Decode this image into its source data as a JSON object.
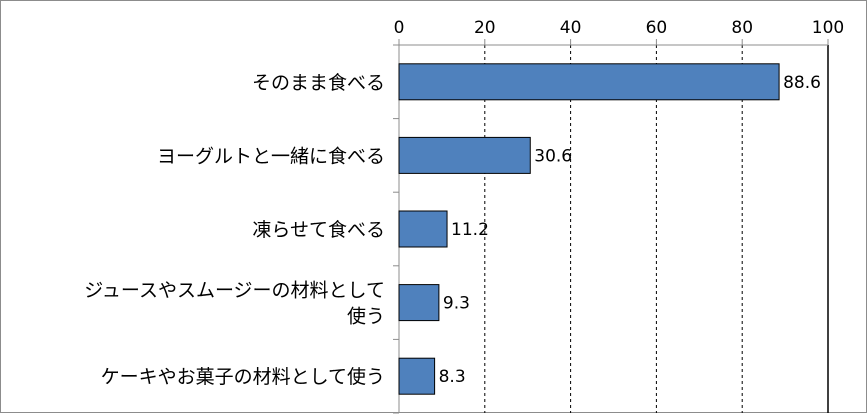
{
  "chart_data": {
    "type": "bar",
    "orientation": "horizontal",
    "categories": [
      "そのまま食べる",
      "ヨーグルトと一緒に食べる",
      "凍らせて食べる",
      "ジュースやスムージーの材料として使う",
      "ケーキやお菓子の材料として使う"
    ],
    "category_lines": [
      [
        "そのまま食べる"
      ],
      [
        "ヨーグルトと一緒に食べる"
      ],
      [
        "凍らせて食べる"
      ],
      [
        "ジュースやスムージーの材料として",
        "使う"
      ],
      [
        "ケーキやお菓子の材料として使う"
      ]
    ],
    "values": [
      88.6,
      30.6,
      11.2,
      9.3,
      8.3
    ],
    "data_labels": [
      "88.6",
      "30.6",
      "11.2",
      "9.3",
      "8.3"
    ],
    "xlim": [
      0,
      100
    ],
    "xticks": [
      0,
      20,
      40,
      60,
      80,
      100
    ],
    "x_axis_position": "top",
    "grid": "vertical dashed",
    "title": "",
    "xlabel": "",
    "ylabel": "",
    "colors": {
      "bar": "#4f81bd",
      "bar_border": "#000000",
      "grid": "#000000",
      "axis": "#8c8c8c"
    }
  }
}
